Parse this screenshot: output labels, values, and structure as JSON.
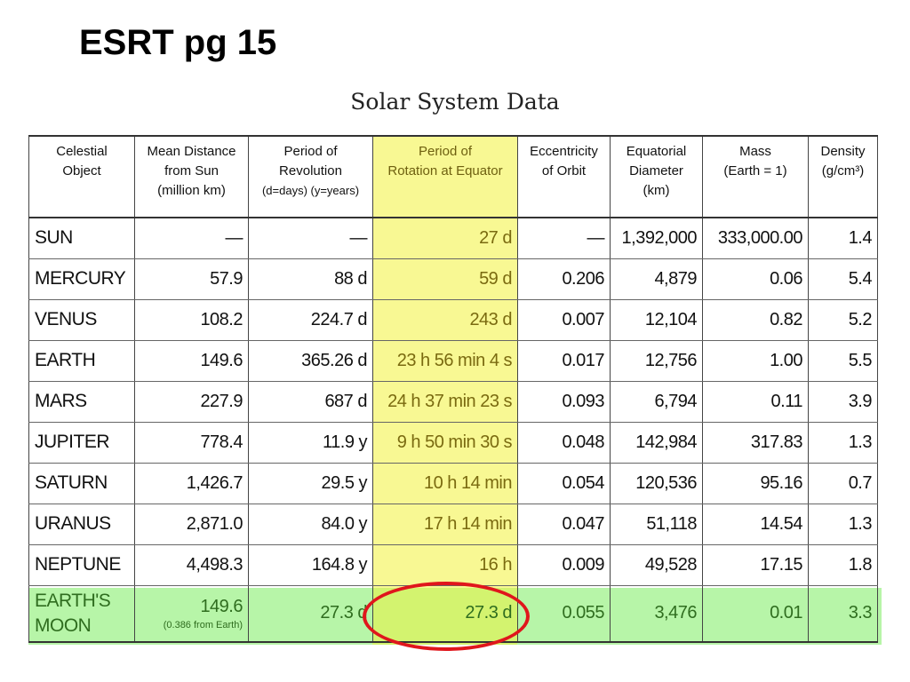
{
  "slide": {
    "title": "ESRT pg 15"
  },
  "table": {
    "caption": "Solar System Data",
    "headers": [
      [
        "Celestial",
        "Object"
      ],
      [
        "Mean Distance",
        "from Sun",
        "(million km)"
      ],
      [
        "Period of",
        "Revolution",
        "(d=days)  (y=years)"
      ],
      [
        "Period of",
        "Rotation at Equator"
      ],
      [
        "Eccentricity",
        "of Orbit"
      ],
      [
        "Equatorial",
        "Diameter",
        "(km)"
      ],
      [
        "Mass",
        "(Earth = 1)"
      ],
      [
        "Density",
        "(g/cm³)"
      ]
    ],
    "rows": [
      [
        "SUN",
        "—",
        "—",
        "27 d",
        "—",
        "1,392,000",
        "333,000.00",
        "1.4"
      ],
      [
        "MERCURY",
        "57.9",
        "88 d",
        "59 d",
        "0.206",
        "4,879",
        "0.06",
        "5.4"
      ],
      [
        "VENUS",
        "108.2",
        "224.7 d",
        "243 d",
        "0.007",
        "12,104",
        "0.82",
        "5.2"
      ],
      [
        "EARTH",
        "149.6",
        "365.26 d",
        "23 h 56 min 4 s",
        "0.017",
        "12,756",
        "1.00",
        "5.5"
      ],
      [
        "MARS",
        "227.9",
        "687 d",
        "24 h 37 min 23 s",
        "0.093",
        "6,794",
        "0.11",
        "3.9"
      ],
      [
        "JUPITER",
        "778.4",
        "11.9 y",
        "9 h 50 min 30 s",
        "0.048",
        "142,984",
        "317.83",
        "1.3"
      ],
      [
        "SATURN",
        "1,426.7",
        "29.5 y",
        "10 h 14 min",
        "0.054",
        "120,536",
        "95.16",
        "0.7"
      ],
      [
        "URANUS",
        "2,871.0",
        "84.0 y",
        "17 h 14 min",
        "0.047",
        "51,118",
        "14.54",
        "1.3"
      ],
      [
        "NEPTUNE",
        "4,498.3",
        "164.8 y",
        "16 h",
        "0.009",
        "49,528",
        "17.15",
        "1.8"
      ]
    ],
    "moon": {
      "name_line1": "EARTH'S",
      "name_line2": "MOON",
      "distance": "149.6",
      "distance_note": "(0.386 from Earth)",
      "revolution": "27.3 d",
      "rotation": "27.3 d",
      "eccentricity": "0.055",
      "diameter": "3,476",
      "mass": "0.01",
      "density": "3.3"
    }
  },
  "colors": {
    "rotation_column_highlight": "#f8f893",
    "moon_row_highlight": "#b7f5a8",
    "circle_annotation": "#e0161c"
  }
}
